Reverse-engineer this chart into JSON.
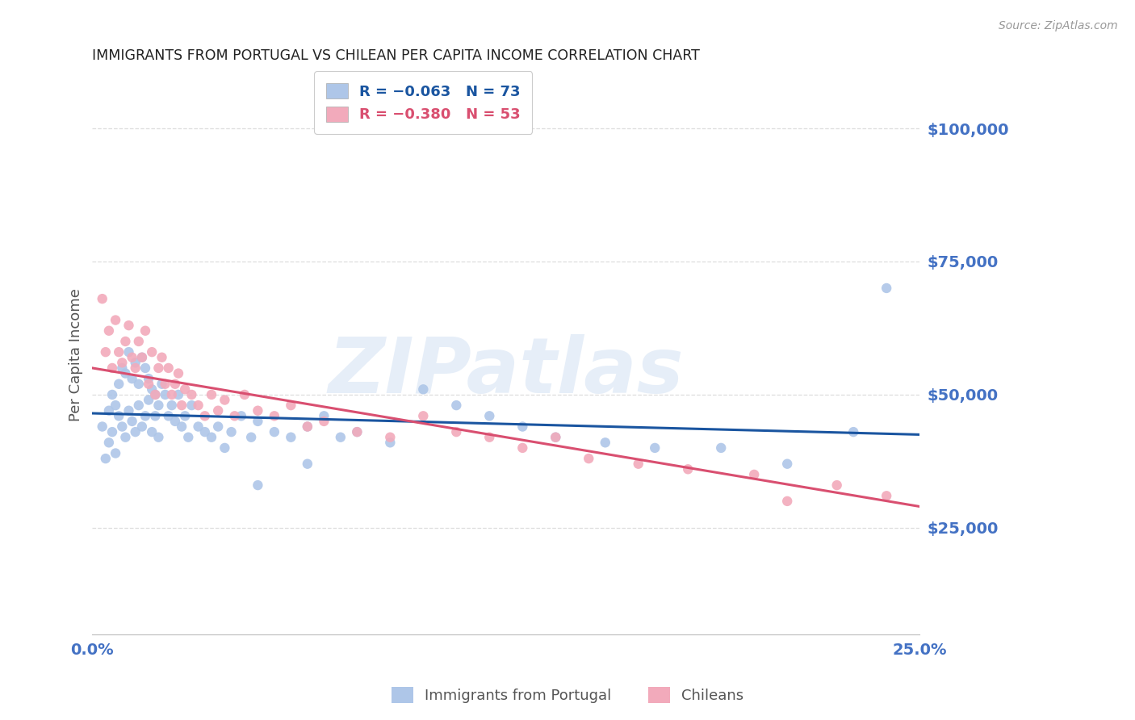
{
  "title": "IMMIGRANTS FROM PORTUGAL VS CHILEAN PER CAPITA INCOME CORRELATION CHART",
  "source": "Source: ZipAtlas.com",
  "ylabel": "Per Capita Income",
  "legend_blue_r": "-0.063",
  "legend_blue_n": "73",
  "legend_pink_r": "-0.380",
  "legend_pink_n": "53",
  "legend_label_blue": "Immigrants from Portugal",
  "legend_label_pink": "Chileans",
  "ytick_values": [
    25000,
    50000,
    75000,
    100000
  ],
  "xlim": [
    0.0,
    0.25
  ],
  "ylim": [
    5000,
    110000
  ],
  "background_color": "#ffffff",
  "grid_color": "#dddddd",
  "title_color": "#222222",
  "axis_label_color": "#555555",
  "ytick_color": "#4472c4",
  "xtick_color": "#4472c4",
  "blue_scatter_color": "#aec6e8",
  "pink_scatter_color": "#f2aabb",
  "blue_line_color": "#1a55a0",
  "pink_line_color": "#d94f70",
  "marker_size": 80,
  "blue_points_x": [
    0.003,
    0.004,
    0.005,
    0.005,
    0.006,
    0.006,
    0.007,
    0.007,
    0.008,
    0.008,
    0.009,
    0.009,
    0.01,
    0.01,
    0.011,
    0.011,
    0.012,
    0.012,
    0.013,
    0.013,
    0.014,
    0.014,
    0.015,
    0.015,
    0.016,
    0.016,
    0.017,
    0.017,
    0.018,
    0.018,
    0.019,
    0.019,
    0.02,
    0.02,
    0.021,
    0.022,
    0.023,
    0.024,
    0.025,
    0.026,
    0.027,
    0.028,
    0.029,
    0.03,
    0.032,
    0.034,
    0.036,
    0.038,
    0.04,
    0.042,
    0.045,
    0.048,
    0.05,
    0.055,
    0.06,
    0.065,
    0.07,
    0.075,
    0.08,
    0.09,
    0.1,
    0.11,
    0.12,
    0.13,
    0.14,
    0.155,
    0.17,
    0.19,
    0.21,
    0.23,
    0.05,
    0.065,
    0.24
  ],
  "blue_points_y": [
    44000,
    38000,
    47000,
    41000,
    50000,
    43000,
    48000,
    39000,
    52000,
    46000,
    55000,
    44000,
    54000,
    42000,
    58000,
    47000,
    53000,
    45000,
    56000,
    43000,
    52000,
    48000,
    57000,
    44000,
    55000,
    46000,
    53000,
    49000,
    51000,
    43000,
    50000,
    46000,
    48000,
    42000,
    52000,
    50000,
    46000,
    48000,
    45000,
    50000,
    44000,
    46000,
    42000,
    48000,
    44000,
    43000,
    42000,
    44000,
    40000,
    43000,
    46000,
    42000,
    45000,
    43000,
    42000,
    44000,
    46000,
    42000,
    43000,
    41000,
    51000,
    48000,
    46000,
    44000,
    42000,
    41000,
    40000,
    40000,
    37000,
    43000,
    33000,
    37000,
    70000
  ],
  "pink_points_x": [
    0.003,
    0.004,
    0.005,
    0.006,
    0.007,
    0.008,
    0.009,
    0.01,
    0.011,
    0.012,
    0.013,
    0.014,
    0.015,
    0.016,
    0.017,
    0.018,
    0.019,
    0.02,
    0.021,
    0.022,
    0.023,
    0.024,
    0.025,
    0.026,
    0.027,
    0.028,
    0.03,
    0.032,
    0.034,
    0.036,
    0.038,
    0.04,
    0.043,
    0.046,
    0.05,
    0.055,
    0.06,
    0.065,
    0.07,
    0.08,
    0.09,
    0.1,
    0.11,
    0.12,
    0.13,
    0.14,
    0.15,
    0.165,
    0.18,
    0.2,
    0.21,
    0.225,
    0.24
  ],
  "pink_points_y": [
    68000,
    58000,
    62000,
    55000,
    64000,
    58000,
    56000,
    60000,
    63000,
    57000,
    55000,
    60000,
    57000,
    62000,
    52000,
    58000,
    50000,
    55000,
    57000,
    52000,
    55000,
    50000,
    52000,
    54000,
    48000,
    51000,
    50000,
    48000,
    46000,
    50000,
    47000,
    49000,
    46000,
    50000,
    47000,
    46000,
    48000,
    44000,
    45000,
    43000,
    42000,
    46000,
    43000,
    42000,
    40000,
    42000,
    38000,
    37000,
    36000,
    35000,
    30000,
    33000,
    31000
  ],
  "watermark_text": "ZIPatlas",
  "watermark_color": "#c8daf0",
  "watermark_alpha": 0.45
}
